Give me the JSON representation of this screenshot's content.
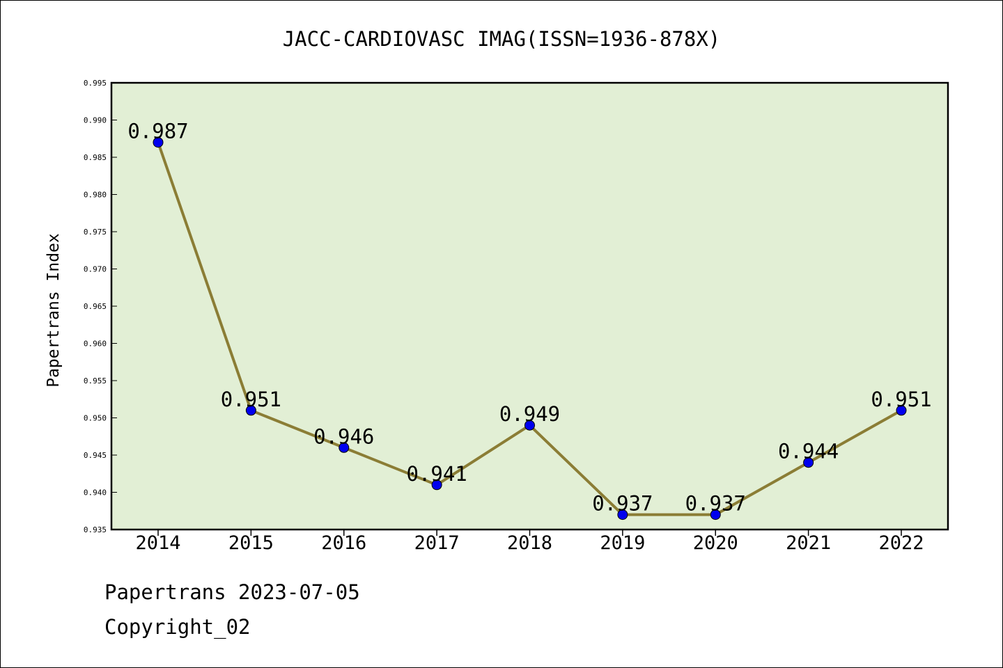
{
  "chart_data": {
    "type": "line",
    "title": "JACC-CARDIOVASC IMAG(ISSN=1936-878X)",
    "xlabel": "",
    "ylabel": "Papertrans Index",
    "categories": [
      "2014",
      "2015",
      "2016",
      "2017",
      "2018",
      "2019",
      "2020",
      "2021",
      "2022"
    ],
    "values": [
      0.987,
      0.951,
      0.946,
      0.941,
      0.949,
      0.937,
      0.937,
      0.944,
      0.951
    ],
    "data_labels": [
      "0.987",
      "0.951",
      "0.946",
      "0.941",
      "0.949",
      "0.937",
      "0.937",
      "0.944",
      "0.951"
    ],
    "ylim": [
      0.935,
      0.995
    ],
    "yticks": [
      "0.935",
      "0.940",
      "0.945",
      "0.950",
      "0.955",
      "0.960",
      "0.965",
      "0.970",
      "0.975",
      "0.980",
      "0.985",
      "0.990",
      "0.995"
    ],
    "grid": false,
    "legend": "none",
    "colors": {
      "plot_background": "#e2efd5",
      "line": "#8b7d35",
      "marker": "#0000ee",
      "axis": "#000000"
    }
  },
  "footer": {
    "date_line": "Papertrans 2023-07-05",
    "copyright_line": "Copyright_02"
  }
}
